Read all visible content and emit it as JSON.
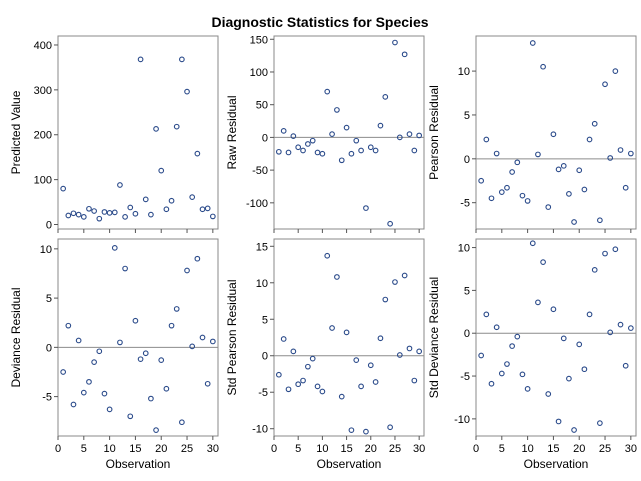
{
  "title": "Diagnostic Statistics for Species",
  "colors": {
    "marker": "#2a4a8a",
    "reference_line": "#8c8c8c",
    "frame": "#888888"
  },
  "chart_data": [
    {
      "type": "scatter",
      "ylabel": "Predicted Value",
      "xlabel": "",
      "xlim": [
        0,
        31
      ],
      "xticks": [
        0,
        5,
        10,
        15,
        20,
        25,
        30
      ],
      "ylim": [
        -10,
        420
      ],
      "yticks": [
        0,
        100,
        200,
        300,
        400
      ],
      "reference_line": null,
      "x": [
        1,
        2,
        3,
        4,
        5,
        6,
        7,
        8,
        9,
        10,
        11,
        12,
        13,
        14,
        15,
        16,
        17,
        18,
        19,
        20,
        21,
        22,
        23,
        24,
        25,
        26,
        27,
        28,
        29,
        30
      ],
      "y": [
        80,
        20,
        25,
        22,
        17,
        35,
        30,
        13,
        28,
        26,
        27,
        88,
        17,
        38,
        24,
        368,
        56,
        22,
        213,
        120,
        34,
        53,
        218,
        368,
        296,
        61,
        158,
        34,
        36,
        18
      ]
    },
    {
      "type": "scatter",
      "ylabel": "Raw Residual",
      "xlabel": "",
      "xlim": [
        0,
        31
      ],
      "xticks": [
        0,
        5,
        10,
        15,
        20,
        25,
        30
      ],
      "ylim": [
        -140,
        155
      ],
      "yticks": [
        -100,
        -50,
        0,
        50,
        100,
        150
      ],
      "reference_line": 0,
      "x": [
        1,
        2,
        3,
        4,
        5,
        6,
        7,
        8,
        9,
        10,
        11,
        12,
        13,
        14,
        15,
        16,
        17,
        18,
        19,
        20,
        21,
        22,
        23,
        24,
        25,
        26,
        27,
        28,
        29,
        30
      ],
      "y": [
        -22,
        10,
        -23,
        2,
        -15,
        -20,
        -10,
        -5,
        -23,
        -25,
        70,
        5,
        42,
        -35,
        15,
        -25,
        -5,
        -20,
        -108,
        -15,
        -20,
        18,
        62,
        -132,
        145,
        0,
        127,
        5,
        -20,
        3
      ]
    },
    {
      "type": "scatter",
      "ylabel": "Pearson Residual",
      "xlabel": "",
      "xlim": [
        0,
        31
      ],
      "xticks": [
        0,
        5,
        10,
        15,
        20,
        25,
        30
      ],
      "ylim": [
        -8,
        14
      ],
      "yticks": [
        -5,
        0,
        5,
        10
      ],
      "reference_line": 0,
      "x": [
        1,
        2,
        3,
        4,
        5,
        6,
        7,
        8,
        9,
        10,
        11,
        12,
        13,
        14,
        15,
        16,
        17,
        18,
        19,
        20,
        21,
        22,
        23,
        24,
        25,
        26,
        27,
        28,
        29,
        30
      ],
      "y": [
        -2.5,
        2.2,
        -4.5,
        0.6,
        -3.8,
        -3.3,
        -1.5,
        -0.4,
        -4.2,
        -4.8,
        13.2,
        0.5,
        10.5,
        -5.5,
        2.8,
        -1.2,
        -0.8,
        -4,
        -7.2,
        -1.3,
        -3.5,
        2.2,
        4,
        -7,
        8.5,
        0.1,
        10,
        1,
        -3.3,
        0.6
      ]
    },
    {
      "type": "scatter",
      "ylabel": "Deviance Residual",
      "xlabel": "Observation",
      "xlim": [
        0,
        31
      ],
      "xticks": [
        0,
        5,
        10,
        15,
        20,
        25,
        30
      ],
      "ylim": [
        -9,
        11
      ],
      "yticks": [
        -5,
        0,
        5,
        10
      ],
      "reference_line": 0,
      "x": [
        1,
        2,
        3,
        4,
        5,
        6,
        7,
        8,
        9,
        10,
        11,
        12,
        13,
        14,
        15,
        16,
        17,
        18,
        19,
        20,
        21,
        22,
        23,
        24,
        25,
        26,
        27,
        28,
        29,
        30
      ],
      "y": [
        -2.5,
        2.2,
        -5.8,
        0.7,
        -4.6,
        -3.5,
        -1.5,
        -0.4,
        -4.7,
        -6.3,
        10.1,
        0.5,
        8,
        -7,
        2.7,
        -1.2,
        -0.6,
        -5.2,
        -8.4,
        -1.3,
        -4.2,
        2.2,
        3.9,
        -7.6,
        7.8,
        0.1,
        9,
        1,
        -3.7,
        0.6
      ]
    },
    {
      "type": "scatter",
      "ylabel": "Std Pearson Residual",
      "xlabel": "Observation",
      "xlim": [
        0,
        31
      ],
      "xticks": [
        0,
        5,
        10,
        15,
        20,
        25,
        30
      ],
      "ylim": [
        -11,
        16
      ],
      "yticks": [
        -10,
        -5,
        0,
        5,
        10,
        15
      ],
      "reference_line": 0,
      "x": [
        1,
        2,
        3,
        4,
        5,
        6,
        7,
        8,
        9,
        10,
        11,
        12,
        13,
        14,
        15,
        16,
        17,
        18,
        19,
        20,
        21,
        22,
        23,
        24,
        25,
        26,
        27,
        28,
        29,
        30
      ],
      "y": [
        -2.6,
        2.3,
        -4.6,
        0.6,
        -3.9,
        -3.4,
        -1.5,
        -0.4,
        -4.2,
        -4.9,
        13.7,
        3.8,
        10.8,
        -5.6,
        3.2,
        -10.2,
        -0.6,
        -4.2,
        -10.4,
        -1.3,
        -3.6,
        2.4,
        7.7,
        -9.8,
        10.1,
        0.1,
        11,
        1,
        -3.4,
        0.6
      ]
    },
    {
      "type": "scatter",
      "ylabel": "Std Deviance Residual",
      "xlabel": "Observation",
      "xlim": [
        0,
        31
      ],
      "xticks": [
        0,
        5,
        10,
        15,
        20,
        25,
        30
      ],
      "ylim": [
        -12,
        11
      ],
      "yticks": [
        -10,
        -5,
        0,
        5,
        10
      ],
      "reference_line": 0,
      "x": [
        1,
        2,
        3,
        4,
        5,
        6,
        7,
        8,
        9,
        10,
        11,
        12,
        13,
        14,
        15,
        16,
        17,
        18,
        19,
        20,
        21,
        22,
        23,
        24,
        25,
        26,
        27,
        28,
        29,
        30
      ],
      "y": [
        -2.6,
        2.2,
        -5.9,
        0.7,
        -4.7,
        -3.6,
        -1.5,
        -0.4,
        -4.8,
        -6.5,
        10.5,
        3.6,
        8.3,
        -7.1,
        2.8,
        -10.3,
        -0.6,
        -5.3,
        -11.3,
        -1.3,
        -4.2,
        2.2,
        7.4,
        -10.5,
        9.3,
        0.1,
        9.8,
        1,
        -3.8,
        0.6
      ]
    }
  ]
}
